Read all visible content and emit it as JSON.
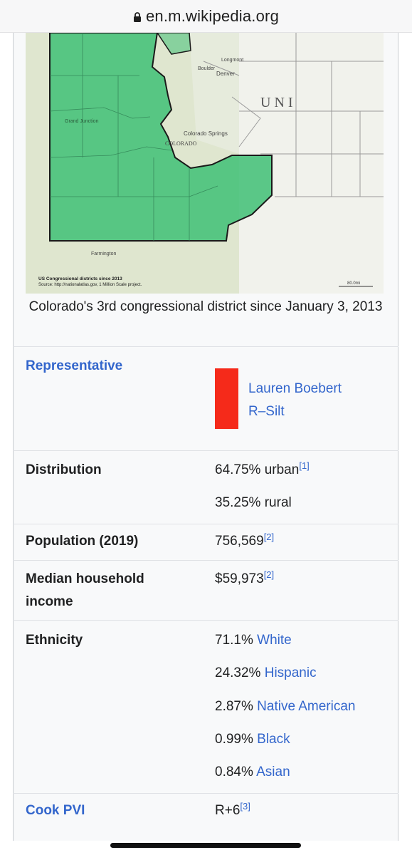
{
  "browser": {
    "domain": "en.m.wikipedia.org",
    "lock_icon": "lock-icon"
  },
  "map": {
    "image_icon": "district-map",
    "label_uni": "U  N  I",
    "label_denver": "Denver",
    "label_boulder": "Boulder",
    "label_longmont": "Longmont",
    "label_colorado_springs": "Colorado Springs",
    "label_colorado": "COLORADO",
    "label_grand_junction": "Grand Junction",
    "label_farmington": "Farmington",
    "credit_line1": "US Congressional districts since 2013",
    "credit_line2": "Source: http://nationalatlas.gov, 1 Million Scale project.",
    "scale_label": "80.0mi",
    "colors": {
      "district_fill": "#3fbf76",
      "terrain": "#dfe6cf",
      "border": "#1a1a1a"
    }
  },
  "caption": "Colorado's 3rd congressional district since January 3, 2013",
  "representative": {
    "label": "Representative",
    "name": "Lauren Boebert",
    "party": "R–Silt",
    "party_color": "#f52a1a"
  },
  "distribution": {
    "label": "Distribution",
    "urban": "64.75% urban",
    "urban_ref": "[1]",
    "rural": "35.25% rural"
  },
  "population": {
    "label": "Population (2019)",
    "value": "756,569",
    "ref": "[2]"
  },
  "income": {
    "label_line1": "Median household",
    "label_line2": "income",
    "value": "$59,973",
    "ref": "[2]"
  },
  "ethnicity": {
    "label": "Ethnicity",
    "items": [
      {
        "pct": "71.1%",
        "name": "White"
      },
      {
        "pct": "24.32%",
        "name": "Hispanic"
      },
      {
        "pct": "2.87%",
        "name": "Native American"
      },
      {
        "pct": "0.99%",
        "name": "Black"
      },
      {
        "pct": "0.84%",
        "name": "Asian"
      }
    ]
  },
  "cook_pvi": {
    "label": "Cook PVI",
    "value": "R+6",
    "ref": "[3]"
  }
}
